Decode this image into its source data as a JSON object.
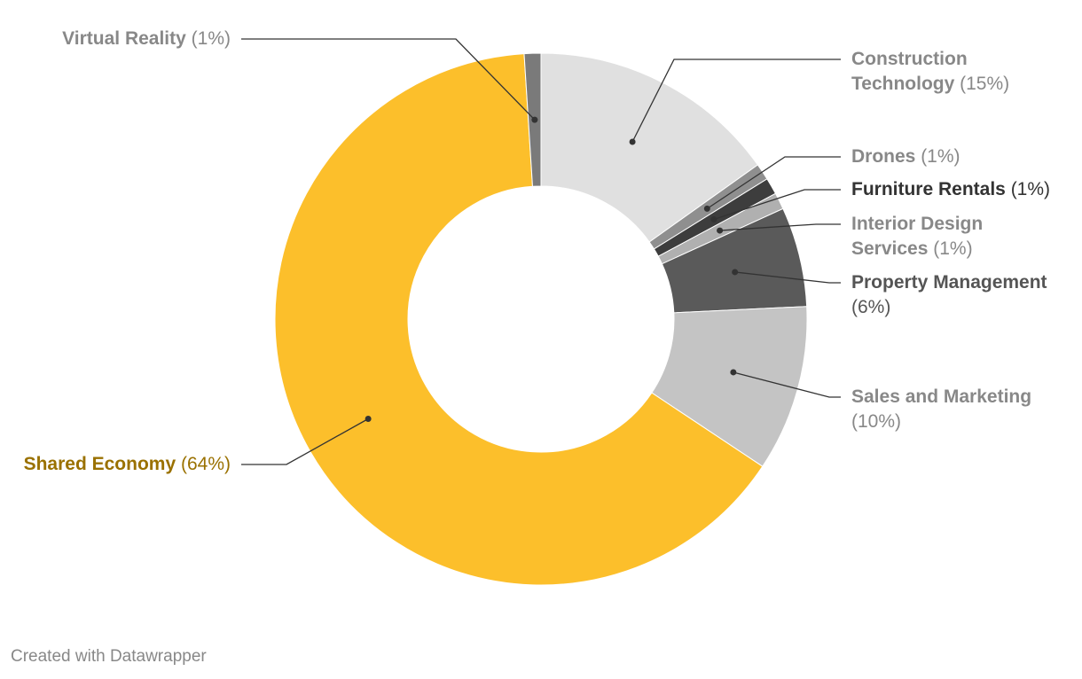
{
  "chart_data": {
    "type": "pie",
    "variant": "donut",
    "start": "12 o'clock, clockwise",
    "slices": [
      {
        "label": "Construction Technology",
        "value": 15,
        "pct_label": "(15%)",
        "color": "#e0e0e0",
        "text_color": "#888888",
        "label_lines": [
          "Construction",
          "Technology"
        ]
      },
      {
        "label": "Drones",
        "value": 1,
        "pct_label": "(1%)",
        "color": "#8f8f8f",
        "text_color": "#888888",
        "label_lines": [
          "Drones"
        ]
      },
      {
        "label": "Furniture Rentals",
        "value": 1,
        "pct_label": "(1%)",
        "color": "#3d3d3d",
        "text_color": "#333333",
        "label_lines": [
          "Furniture Rentals"
        ]
      },
      {
        "label": "Interior Design Services",
        "value": 1,
        "pct_label": "(1%)",
        "color": "#b0b0b0",
        "text_color": "#888888",
        "label_lines": [
          "Interior Design",
          "Services"
        ]
      },
      {
        "label": "Property Management",
        "value": 6,
        "pct_label": "(6%)",
        "color": "#5a5a5a",
        "text_color": "#555555",
        "label_lines": [
          "Property Management"
        ]
      },
      {
        "label": "Sales and Marketing",
        "value": 10,
        "pct_label": "(10%)",
        "color": "#c4c4c4",
        "text_color": "#888888",
        "label_lines": [
          "Sales and Marketing"
        ]
      },
      {
        "label": "Shared Economy",
        "value": 64,
        "pct_label": "(64%)",
        "color": "#fcbf2b",
        "text_color": "#9a7100",
        "label_lines": [
          "Shared Economy"
        ]
      },
      {
        "label": "Virtual Reality",
        "value": 1,
        "pct_label": "(1%)",
        "color": "#7a7a7a",
        "text_color": "#888888",
        "label_lines": [
          "Virtual Reality"
        ]
      }
    ]
  },
  "footer": {
    "credit": "Created with Datawrapper"
  }
}
